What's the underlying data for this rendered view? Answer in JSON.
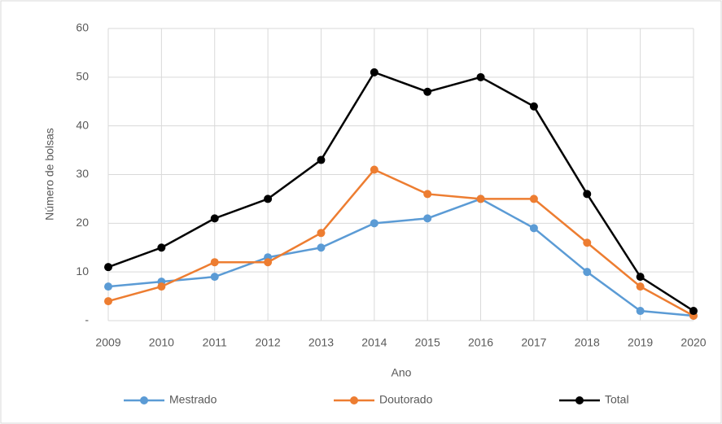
{
  "chart_data": {
    "type": "line",
    "categories": [
      "2009",
      "2010",
      "2011",
      "2012",
      "2013",
      "2014",
      "2015",
      "2016",
      "2017",
      "2018",
      "2019",
      "2020"
    ],
    "series": [
      {
        "name": "Mestrado",
        "color": "#5b9bd5",
        "values": [
          7,
          8,
          9,
          13,
          15,
          20,
          21,
          25,
          19,
          10,
          2,
          1
        ]
      },
      {
        "name": "Doutorado",
        "color": "#ed7d31",
        "values": [
          4,
          7,
          12,
          12,
          18,
          31,
          26,
          25,
          25,
          16,
          7,
          1
        ]
      },
      {
        "name": "Total",
        "color": "#000000",
        "values": [
          11,
          15,
          21,
          25,
          33,
          51,
          47,
          50,
          44,
          26,
          9,
          2
        ]
      }
    ],
    "x_label": "Ano",
    "y_label": "Número de bolsas",
    "ylim": [
      0,
      60
    ],
    "yticks": [
      {
        "value": 0,
        "label": "-"
      },
      10,
      20,
      30,
      40,
      50,
      60
    ],
    "grid": true,
    "legend": "bottom"
  }
}
